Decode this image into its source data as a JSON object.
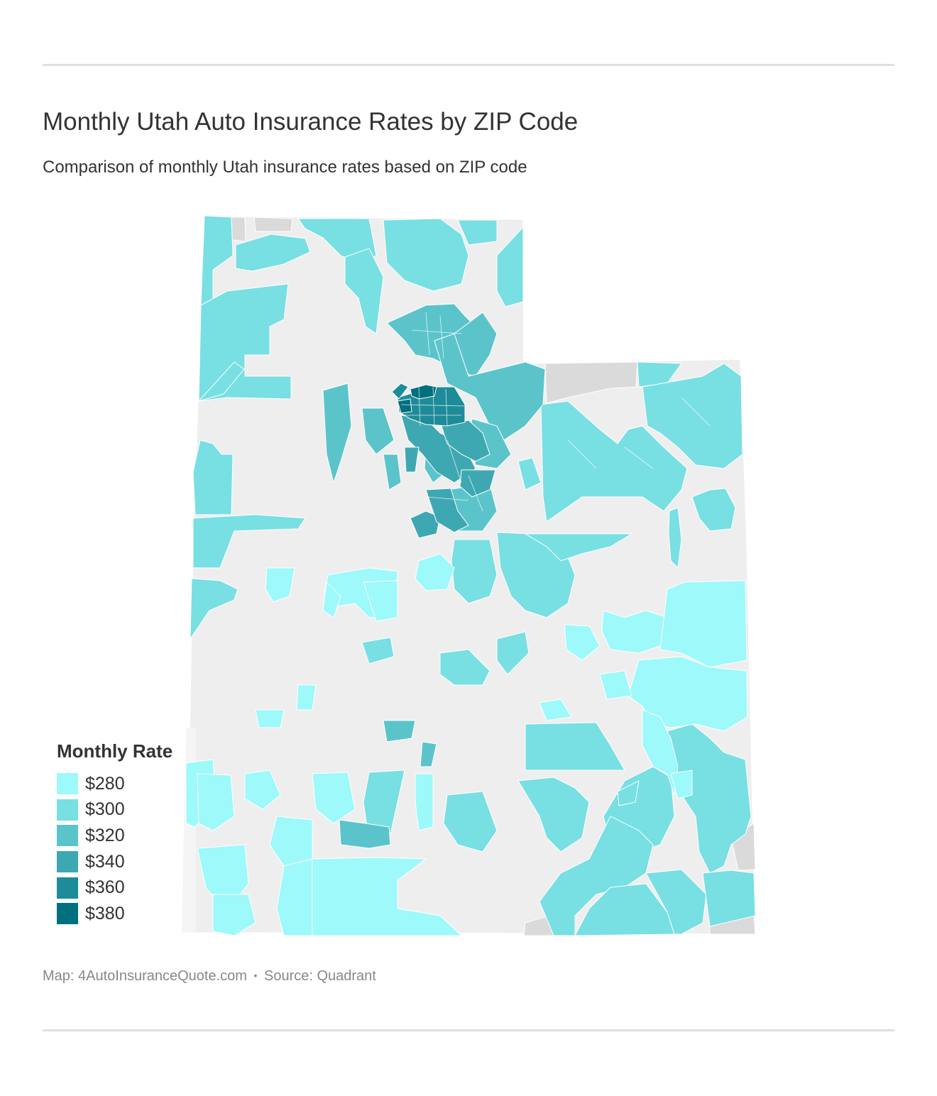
{
  "header": {
    "title": "Monthly Utah Auto Insurance Rates by ZIP Code",
    "subtitle": "Comparison of monthly Utah insurance rates based on ZIP code"
  },
  "legend": {
    "title": "Monthly Rate",
    "items": [
      {
        "label": "$280",
        "color": "#9df9fa"
      },
      {
        "label": "$300",
        "color": "#78dfe3"
      },
      {
        "label": "$320",
        "color": "#5bc4cb"
      },
      {
        "label": "$340",
        "color": "#3ea8b2"
      },
      {
        "label": "$360",
        "color": "#1d8c98"
      },
      {
        "label": "$380",
        "color": "#006f7e"
      }
    ]
  },
  "map": {
    "region": "Utah",
    "no_data_color": "#eeeeee",
    "unassigned_color": "#dadada"
  },
  "footer": {
    "map_credit": "Map: 4AutoInsuranceQuote.com",
    "separator": "•",
    "source": "Source: Quadrant"
  }
}
